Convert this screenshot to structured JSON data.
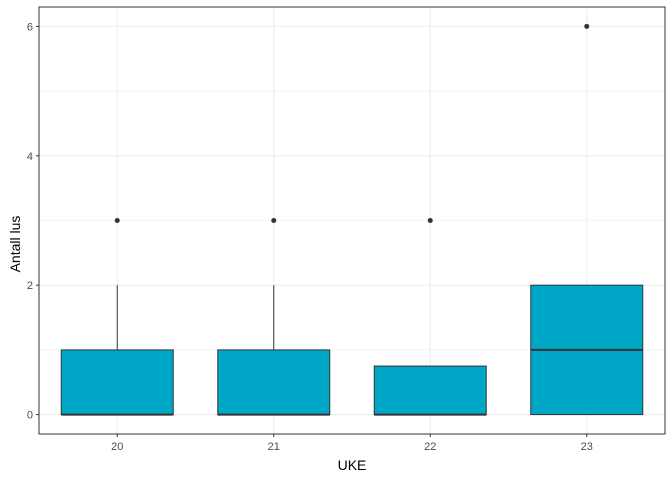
{
  "chart_data": {
    "type": "boxplot",
    "xlabel": "UKE",
    "ylabel": "Antall lus",
    "categories": [
      "20",
      "21",
      "22",
      "23"
    ],
    "ylim": [
      -0.3,
      6.3
    ],
    "yticks": [
      0,
      2,
      4,
      6
    ],
    "grid": true,
    "fill_color": "#00A6C5",
    "boxes": [
      {
        "category": "20",
        "min": 0,
        "q1": 0,
        "median": 0,
        "q3": 1,
        "max": 2,
        "outliers": [
          3
        ]
      },
      {
        "category": "21",
        "min": 0,
        "q1": 0,
        "median": 0,
        "q3": 1,
        "max": 2,
        "outliers": [
          3
        ]
      },
      {
        "category": "22",
        "min": 0,
        "q1": 0,
        "median": 0,
        "q3": 0.75,
        "max": 0.75,
        "outliers": [
          3
        ]
      },
      {
        "category": "23",
        "min": 0,
        "q1": 0,
        "median": 1,
        "q3": 2,
        "max": 2,
        "outliers": [
          6
        ]
      }
    ]
  }
}
